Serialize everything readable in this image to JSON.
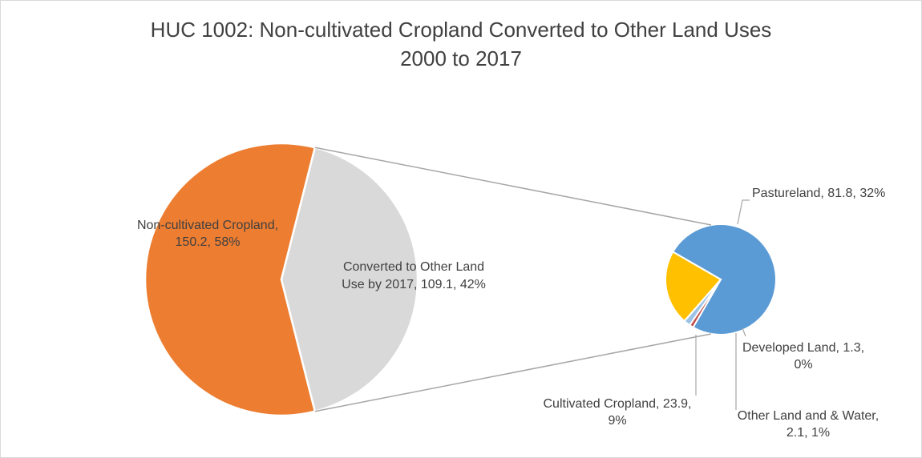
{
  "chart_data": {
    "type": "pie",
    "subtype": "pie-of-pie",
    "title": "HUC 1002: Non-cultivated Cropland Converted to Other Land Uses",
    "subtitle": "2000 to 2017",
    "primary": {
      "slices": [
        {
          "label": "Non-cultivated Cropland,",
          "label2": "150.2, 58%",
          "value": 150.2,
          "percent": 58,
          "color": "#ed7d31"
        },
        {
          "label": "Converted to Other Land",
          "label2": "Use by 2017, 109.1, 42%",
          "value": 109.1,
          "percent": 42,
          "color": "#d9d9d9"
        }
      ]
    },
    "secondary": {
      "slices": [
        {
          "label": "Pastureland, 81.8, 32%",
          "label2": "",
          "value": 81.8,
          "percent": 32,
          "color": "#5b9bd5"
        },
        {
          "label": "Developed Land, 1.3,",
          "label2": "0%",
          "value": 1.3,
          "percent": 0,
          "color": "#c0504d"
        },
        {
          "label": "Other Land and & Water,",
          "label2": "2.1, 1%",
          "value": 2.1,
          "percent": 1,
          "color": "#9dc3e6"
        },
        {
          "label": "Cultivated Cropland, 23.9,",
          "label2": "9%",
          "value": 23.9,
          "percent": 9,
          "color": "#ffc000"
        }
      ]
    },
    "legend": "none",
    "line_color": "#a6a6a6"
  }
}
